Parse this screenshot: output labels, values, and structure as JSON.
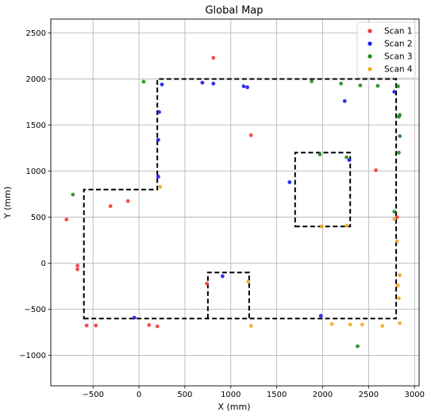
{
  "chart_data": {
    "type": "scatter",
    "title": "Global Map",
    "xlabel": "X (mm)",
    "ylabel": "Y (mm)",
    "xlim": [
      -960,
      3050
    ],
    "ylim": [
      -1330,
      2650
    ],
    "xticks": [
      -500,
      0,
      500,
      1000,
      1500,
      2000,
      2500,
      3000
    ],
    "yticks": [
      -1000,
      -500,
      0,
      500,
      1000,
      1500,
      2000,
      2500
    ],
    "grid": true,
    "legend_position": "top-right",
    "series": [
      {
        "name": "Scan 1",
        "color": "#ef3b36",
        "points": [
          [
            810,
            2230
          ],
          [
            1220,
            1390
          ],
          [
            -120,
            675
          ],
          [
            -310,
            620
          ],
          [
            -790,
            475
          ],
          [
            -670,
            -25
          ],
          [
            -670,
            -65
          ],
          [
            -570,
            -675
          ],
          [
            -470,
            -675
          ],
          [
            110,
            -670
          ],
          [
            200,
            -685
          ],
          [
            740,
            -220
          ],
          [
            2580,
            1010
          ],
          [
            2810,
            500
          ]
        ]
      },
      {
        "name": "Scan 2",
        "color": "#1a1aef",
        "points": [
          [
            690,
            1960
          ],
          [
            810,
            1950
          ],
          [
            1140,
            1920
          ],
          [
            1180,
            1910
          ],
          [
            250,
            1940
          ],
          [
            220,
            1640
          ],
          [
            210,
            1340
          ],
          [
            210,
            940
          ],
          [
            2240,
            1760
          ],
          [
            2780,
            1860
          ],
          [
            2290,
            1120
          ],
          [
            1640,
            880
          ],
          [
            910,
            -140
          ],
          [
            -50,
            -590
          ],
          [
            1980,
            -570
          ]
        ]
      },
      {
        "name": "Scan 3",
        "color": "#1f8a1f",
        "points": [
          [
            50,
            1970
          ],
          [
            1880,
            1975
          ],
          [
            2200,
            1950
          ],
          [
            2410,
            1930
          ],
          [
            2600,
            1925
          ],
          [
            2820,
            1920
          ],
          [
            2840,
            1610
          ],
          [
            2830,
            1590
          ],
          [
            2840,
            1380
          ],
          [
            2830,
            1200
          ],
          [
            1970,
            1180
          ],
          [
            2260,
            1150
          ],
          [
            2780,
            560
          ],
          [
            -720,
            745
          ],
          [
            2380,
            -900
          ]
        ]
      },
      {
        "name": "Scan 4",
        "color": "#f5a623",
        "points": [
          [
            230,
            830
          ],
          [
            1990,
            400
          ],
          [
            2260,
            410
          ],
          [
            2780,
            480
          ],
          [
            2810,
            240
          ],
          [
            2840,
            -130
          ],
          [
            2820,
            -240
          ],
          [
            2830,
            -380
          ],
          [
            2840,
            -650
          ],
          [
            2650,
            -680
          ],
          [
            2430,
            -665
          ],
          [
            2300,
            -665
          ],
          [
            2100,
            -660
          ],
          [
            1220,
            -680
          ],
          [
            1190,
            -200
          ]
        ]
      }
    ],
    "map_outlines": [
      {
        "closed": true,
        "points": [
          [
            -600,
            -600
          ],
          [
            2800,
            -600
          ],
          [
            2800,
            2000
          ],
          [
            200,
            2000
          ],
          [
            200,
            800
          ],
          [
            -600,
            800
          ]
        ]
      },
      {
        "closed": true,
        "points": [
          [
            1700,
            400
          ],
          [
            2300,
            400
          ],
          [
            2300,
            1200
          ],
          [
            1700,
            1200
          ]
        ]
      },
      {
        "closed": false,
        "points": [
          [
            750,
            -600
          ],
          [
            750,
            -100
          ],
          [
            1200,
            -100
          ],
          [
            1200,
            -600
          ]
        ]
      }
    ]
  }
}
